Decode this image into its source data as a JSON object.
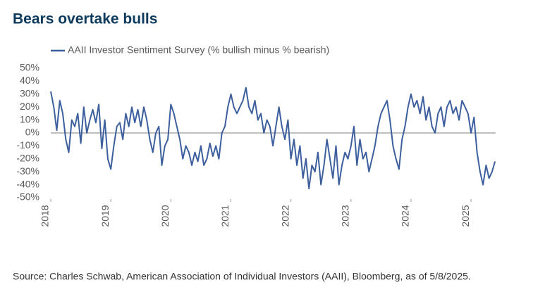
{
  "chart_data": {
    "type": "line",
    "title": "Bears overtake bulls",
    "source": "Source: Charles Schwab, American Association of Individual Investors (AAII), Bloomberg, as of 5/8/2025.",
    "x": [
      2018.0,
      2018.05,
      2018.1,
      2018.15,
      2018.2,
      2018.25,
      2018.3,
      2018.35,
      2018.4,
      2018.45,
      2018.5,
      2018.55,
      2018.6,
      2018.65,
      2018.7,
      2018.75,
      2018.8,
      2018.85,
      2018.9,
      2018.95,
      2019.0,
      2019.05,
      2019.1,
      2019.15,
      2019.2,
      2019.25,
      2019.3,
      2019.35,
      2019.4,
      2019.45,
      2019.5,
      2019.55,
      2019.6,
      2019.65,
      2019.7,
      2019.75,
      2019.8,
      2019.85,
      2019.9,
      2019.95,
      2020.0,
      2020.05,
      2020.1,
      2020.15,
      2020.2,
      2020.25,
      2020.3,
      2020.35,
      2020.4,
      2020.45,
      2020.5,
      2020.55,
      2020.6,
      2020.65,
      2020.7,
      2020.75,
      2020.8,
      2020.85,
      2020.9,
      2020.95,
      2021.0,
      2021.05,
      2021.1,
      2021.15,
      2021.2,
      2021.25,
      2021.3,
      2021.35,
      2021.4,
      2021.45,
      2021.5,
      2021.55,
      2021.6,
      2021.65,
      2021.7,
      2021.75,
      2021.8,
      2021.85,
      2021.9,
      2021.95,
      2022.0,
      2022.05,
      2022.1,
      2022.15,
      2022.2,
      2022.25,
      2022.3,
      2022.35,
      2022.4,
      2022.45,
      2022.5,
      2022.55,
      2022.6,
      2022.65,
      2022.7,
      2022.75,
      2022.8,
      2022.85,
      2022.9,
      2022.95,
      2023.0,
      2023.05,
      2023.1,
      2023.15,
      2023.2,
      2023.25,
      2023.3,
      2023.35,
      2023.4,
      2023.45,
      2023.5,
      2023.55,
      2023.6,
      2023.65,
      2023.7,
      2023.75,
      2023.8,
      2023.85,
      2023.9,
      2023.95,
      2024.0,
      2024.05,
      2024.1,
      2024.15,
      2024.2,
      2024.25,
      2024.3,
      2024.35,
      2024.4,
      2024.45,
      2024.5,
      2024.55,
      2024.6,
      2024.65,
      2024.7,
      2024.75,
      2024.8,
      2024.85,
      2024.9,
      2024.95,
      2025.0,
      2025.05,
      2025.1,
      2025.15,
      2025.2,
      2025.25,
      2025.3,
      2025.35,
      2025.4
    ],
    "series": [
      {
        "name": "AAII Investor Sentiment Survey (% bullish minus % bearish)",
        "color": "#3d5f9e",
        "values": [
          32,
          20,
          2,
          25,
          15,
          -5,
          -15,
          10,
          5,
          15,
          -8,
          20,
          0,
          10,
          18,
          8,
          22,
          -12,
          10,
          -20,
          -28,
          -10,
          5,
          8,
          -5,
          15,
          5,
          20,
          8,
          18,
          5,
          20,
          10,
          -5,
          -15,
          0,
          5,
          -25,
          -10,
          -5,
          22,
          15,
          5,
          -5,
          -20,
          -10,
          -15,
          -25,
          -15,
          -22,
          -10,
          -25,
          -20,
          -8,
          -18,
          -10,
          -20,
          0,
          5,
          20,
          30,
          20,
          15,
          20,
          25,
          35,
          20,
          15,
          25,
          10,
          15,
          0,
          10,
          5,
          -10,
          5,
          20,
          5,
          -5,
          10,
          -20,
          -5,
          -25,
          -10,
          -35,
          -20,
          -43,
          -25,
          -30,
          -15,
          -40,
          -25,
          -5,
          -20,
          -35,
          -10,
          -40,
          -25,
          -15,
          -20,
          -10,
          5,
          -25,
          -5,
          -20,
          -15,
          -30,
          -20,
          -10,
          5,
          15,
          20,
          25,
          10,
          -10,
          -20,
          -28,
          -5,
          5,
          20,
          30,
          20,
          25,
          15,
          28,
          10,
          20,
          5,
          0,
          15,
          20,
          5,
          20,
          25,
          15,
          20,
          10,
          25,
          20,
          15,
          0,
          12,
          -15,
          -30,
          -40,
          -25,
          -35,
          -30,
          -22
        ]
      }
    ],
    "xlim": [
      2018,
      2025.41
    ],
    "xticks": [
      2018,
      2019,
      2020,
      2021,
      2022,
      2023,
      2024,
      2025
    ],
    "ylim": [
      -50,
      50
    ],
    "yticks": [
      {
        "value": 50,
        "label": "50%"
      },
      {
        "value": 40,
        "label": "40%"
      },
      {
        "value": 30,
        "label": "30%"
      },
      {
        "value": 20,
        "label": "20%"
      },
      {
        "value": 10,
        "label": "10%"
      },
      {
        "value": 0,
        "label": "0%"
      },
      {
        "value": -10,
        "label": "-10%"
      },
      {
        "value": -20,
        "label": "-20%"
      },
      {
        "value": -30,
        "label": "-30%"
      },
      {
        "value": -40,
        "label": "-40%"
      },
      {
        "value": -50,
        "label": "-50%"
      }
    ],
    "grid": false
  }
}
